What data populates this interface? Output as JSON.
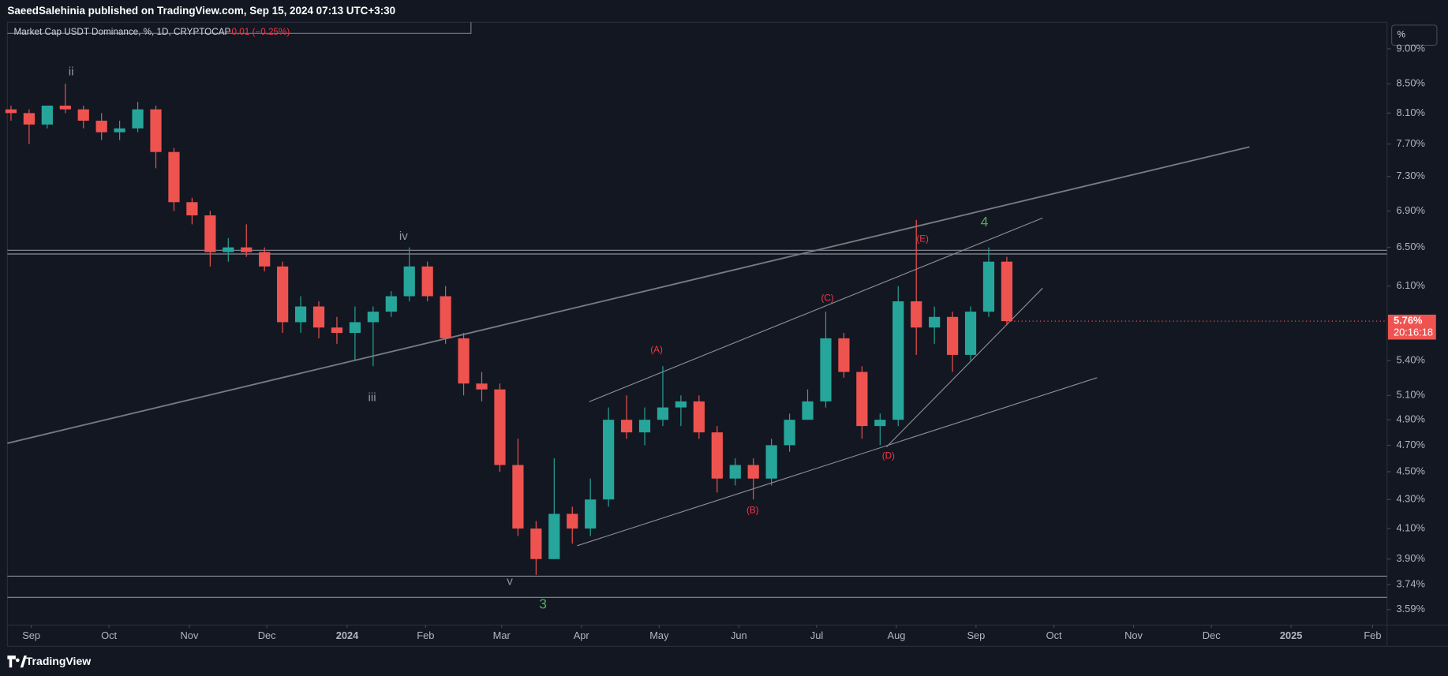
{
  "header": {
    "publisher": "SaeedSalehinia published on TradingView.com, Sep 15, 2024 07:13 UTC+3:30"
  },
  "legend": {
    "symbol": "Market Cap USDT Dominance, %, 1D, CRYPTOCAP",
    "change": "−0.01 (−0.25%)"
  },
  "scale_button": "%",
  "footer": {
    "brand": "TradingView"
  },
  "chart_data": {
    "type": "candlestick",
    "log_scale": true,
    "grid": false,
    "up_color": "#26a69a",
    "down_color": "#ef5350",
    "ylim": [
      3.5,
      9.4
    ],
    "yticks": [
      {
        "value": 9.0,
        "label": "9.00%"
      },
      {
        "value": 8.5,
        "label": "8.50%"
      },
      {
        "value": 8.1,
        "label": "8.10%"
      },
      {
        "value": 7.7,
        "label": "7.70%"
      },
      {
        "value": 7.3,
        "label": "7.30%"
      },
      {
        "value": 6.9,
        "label": "6.90%"
      },
      {
        "value": 6.5,
        "label": "6.50%"
      },
      {
        "value": 6.1,
        "label": "6.10%"
      },
      {
        "value": 5.4,
        "label": "5.40%"
      },
      {
        "value": 5.1,
        "label": "5.10%"
      },
      {
        "value": 4.9,
        "label": "4.90%"
      },
      {
        "value": 4.7,
        "label": "4.70%"
      },
      {
        "value": 4.5,
        "label": "4.50%"
      },
      {
        "value": 4.3,
        "label": "4.30%"
      },
      {
        "value": 4.1,
        "label": "4.10%"
      },
      {
        "value": 3.9,
        "label": "3.90%"
      },
      {
        "value": 3.74,
        "label": "3.74%"
      },
      {
        "value": 3.59,
        "label": "3.59%"
      }
    ],
    "xlim": [
      -0.2,
      76
    ],
    "xticks": [
      {
        "value": 1.12,
        "label": "Sep"
      },
      {
        "value": 5.41,
        "label": "Oct"
      },
      {
        "value": 9.85,
        "label": "Nov"
      },
      {
        "value": 14.13,
        "label": "Dec"
      },
      {
        "value": 18.57,
        "label": "2024"
      },
      {
        "value": 22.9,
        "label": "Feb"
      },
      {
        "value": 27.1,
        "label": "Mar"
      },
      {
        "value": 31.5,
        "label": "Apr"
      },
      {
        "value": 35.8,
        "label": "May"
      },
      {
        "value": 40.2,
        "label": "Jun"
      },
      {
        "value": 44.5,
        "label": "Jul"
      },
      {
        "value": 48.9,
        "label": "Aug"
      },
      {
        "value": 53.3,
        "label": "Sep"
      },
      {
        "value": 57.6,
        "label": "Oct"
      },
      {
        "value": 62.0,
        "label": "Nov"
      },
      {
        "value": 66.3,
        "label": "Dec"
      },
      {
        "value": 70.7,
        "label": "2025"
      },
      {
        "value": 75.2,
        "label": "Feb"
      }
    ],
    "candles": [
      [
        8.15,
        8.2,
        8.0,
        8.1
      ],
      [
        8.1,
        8.15,
        7.7,
        7.95
      ],
      [
        7.95,
        8.2,
        7.9,
        8.2
      ],
      [
        8.2,
        8.5,
        8.1,
        8.15
      ],
      [
        8.15,
        8.2,
        7.9,
        8.0
      ],
      [
        8.0,
        8.1,
        7.75,
        7.85
      ],
      [
        7.85,
        8.0,
        7.75,
        7.9
      ],
      [
        7.9,
        8.25,
        7.85,
        8.15
      ],
      [
        8.15,
        8.2,
        7.4,
        7.6
      ],
      [
        7.6,
        7.65,
        6.9,
        7.0
      ],
      [
        7.0,
        7.05,
        6.75,
        6.85
      ],
      [
        6.85,
        6.9,
        6.3,
        6.45
      ],
      [
        6.45,
        6.6,
        6.35,
        6.5
      ],
      [
        6.5,
        6.75,
        6.4,
        6.45
      ],
      [
        6.45,
        6.5,
        6.25,
        6.3
      ],
      [
        6.3,
        6.35,
        5.65,
        5.75
      ],
      [
        5.75,
        6.0,
        5.65,
        5.9
      ],
      [
        5.9,
        5.95,
        5.6,
        5.7
      ],
      [
        5.7,
        5.8,
        5.55,
        5.65
      ],
      [
        5.65,
        5.9,
        5.4,
        5.75
      ],
      [
        5.75,
        5.9,
        5.35,
        5.85
      ],
      [
        5.85,
        6.05,
        5.8,
        6.0
      ],
      [
        6.0,
        6.5,
        5.95,
        6.3
      ],
      [
        6.3,
        6.35,
        5.95,
        6.0
      ],
      [
        6.0,
        6.1,
        5.55,
        5.6
      ],
      [
        5.6,
        5.65,
        5.1,
        5.2
      ],
      [
        5.2,
        5.3,
        5.05,
        5.15
      ],
      [
        5.15,
        5.2,
        4.5,
        4.55
      ],
      [
        4.55,
        4.75,
        4.05,
        4.1
      ],
      [
        4.1,
        4.15,
        3.8,
        3.9
      ],
      [
        3.9,
        4.6,
        3.9,
        4.2
      ],
      [
        4.2,
        4.25,
        4.0,
        4.1
      ],
      [
        4.1,
        4.45,
        4.05,
        4.3
      ],
      [
        4.3,
        5.0,
        4.25,
        4.9
      ],
      [
        4.9,
        5.1,
        4.75,
        4.8
      ],
      [
        4.8,
        5.0,
        4.7,
        4.9
      ],
      [
        4.9,
        5.35,
        4.85,
        5.0
      ],
      [
        5.0,
        5.1,
        4.85,
        5.05
      ],
      [
        5.05,
        5.1,
        4.75,
        4.8
      ],
      [
        4.8,
        4.85,
        4.35,
        4.45
      ],
      [
        4.45,
        4.6,
        4.4,
        4.55
      ],
      [
        4.55,
        4.6,
        4.3,
        4.45
      ],
      [
        4.45,
        4.75,
        4.4,
        4.7
      ],
      [
        4.7,
        4.95,
        4.65,
        4.9
      ],
      [
        4.9,
        5.15,
        4.9,
        5.05
      ],
      [
        5.05,
        5.85,
        5.0,
        5.6
      ],
      [
        5.6,
        5.65,
        5.25,
        5.3
      ],
      [
        5.3,
        5.35,
        4.75,
        4.85
      ],
      [
        4.85,
        4.95,
        4.7,
        4.9
      ],
      [
        4.9,
        6.1,
        4.85,
        5.95
      ],
      [
        5.95,
        6.8,
        5.45,
        5.7
      ],
      [
        5.7,
        5.9,
        5.55,
        5.8
      ],
      [
        5.8,
        5.85,
        5.3,
        5.45
      ],
      [
        5.45,
        5.9,
        5.4,
        5.85
      ],
      [
        5.85,
        6.5,
        5.8,
        6.35
      ],
      [
        6.35,
        6.4,
        5.72,
        5.76
      ]
    ],
    "last_price_label": "5.76%",
    "countdown": "20:16:18",
    "wave_labels": [
      "ii",
      "iii",
      "iv",
      "v",
      "3",
      "4",
      "(A)",
      "(B)",
      "(C)",
      "(D)",
      "(E)"
    ]
  }
}
